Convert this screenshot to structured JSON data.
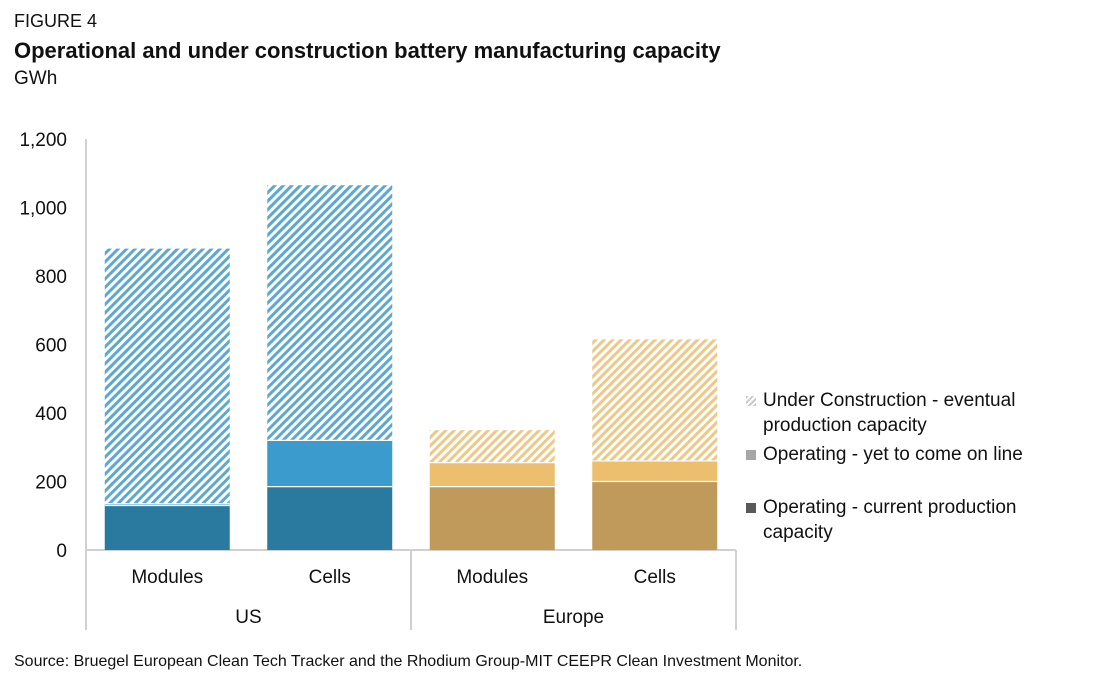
{
  "figure_label": "FIGURE 4",
  "title": "Operational and under construction battery manufacturing capacity",
  "unit": "GWh",
  "source": "Source: Bruegel European Clean Tech Tracker and the Rhodium Group-MIT CEEPR Clean Investment Monitor.",
  "legend": [
    {
      "label": "Under Construction - eventual production capacity",
      "swatch": "hatched"
    },
    {
      "label": "Operating - yet to come on line",
      "swatch": "medium"
    },
    {
      "label": "Operating - current production capacity",
      "swatch": "dark"
    }
  ],
  "chart_data": {
    "type": "bar",
    "stacked": true,
    "ylim": [
      0,
      1200
    ],
    "yticks": [
      0,
      200,
      400,
      600,
      800,
      1000,
      1200
    ],
    "groups": [
      {
        "name": "US",
        "categories": [
          "Modules",
          "Cells"
        ]
      },
      {
        "name": "Europe",
        "categories": [
          "Modules",
          "Cells"
        ]
      }
    ],
    "series": [
      {
        "name": "Operating - current production capacity",
        "values": [
          130,
          185,
          185,
          200
        ]
      },
      {
        "name": "Operating - yet to come on line",
        "values": [
          5,
          135,
          70,
          60
        ]
      },
      {
        "name": "Under Construction - eventual production capacity",
        "values": [
          745,
          745,
          95,
          355
        ]
      }
    ],
    "colors": {
      "US": [
        "#2a7aa0",
        "#3a9bcc",
        "#5da8d2"
      ],
      "Europe": [
        "#bf9a5a",
        "#ecbf6e",
        "#efc887"
      ]
    },
    "legend_position": "right",
    "grid": false
  }
}
